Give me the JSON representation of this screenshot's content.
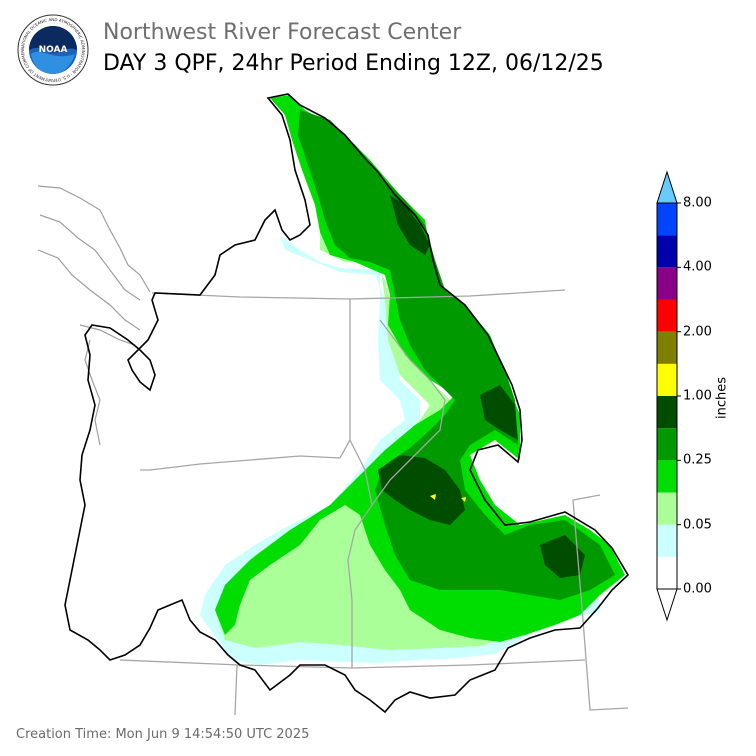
{
  "header": {
    "organization": "Northwest River Forecast Center",
    "product_title": "DAY 3 QPF, 24hr Period Ending 12Z, 06/12/25",
    "logo_text": "NOAA",
    "logo_ring_text": "NATIONAL OCEANIC AND ATMOSPHERIC ADMINISTRATION · U.S. DEPARTMENT OF COMMERCE"
  },
  "colorbar": {
    "title": "inches",
    "tick_labels": [
      "0.00",
      "0.05",
      "0.25",
      "1.00",
      "2.00",
      "4.00",
      "8.00"
    ],
    "bins": [
      {
        "color": "#ffffff"
      },
      {
        "color": "#ccffff"
      },
      {
        "color": "#aaff99"
      },
      {
        "color": "#00dd00"
      },
      {
        "color": "#009900"
      },
      {
        "color": "#004d00"
      },
      {
        "color": "#ffff00"
      },
      {
        "color": "#808000"
      },
      {
        "color": "#ff0000"
      },
      {
        "color": "#880088"
      },
      {
        "color": "#0000aa"
      },
      {
        "color": "#0044ff"
      }
    ],
    "extend_max_color": "#66ccff",
    "extend_min_color": "#ffffff"
  },
  "map": {
    "region": "Columbia River Basin / Pacific Northwest",
    "colors": {
      "basin_outline": "#000000",
      "state_lines": "#a6a6a6",
      "coastline": "#9e9e9e"
    }
  },
  "footer": {
    "creation_time": "Creation Time: Mon Jun 9 14:54:50 UTC 2025"
  }
}
